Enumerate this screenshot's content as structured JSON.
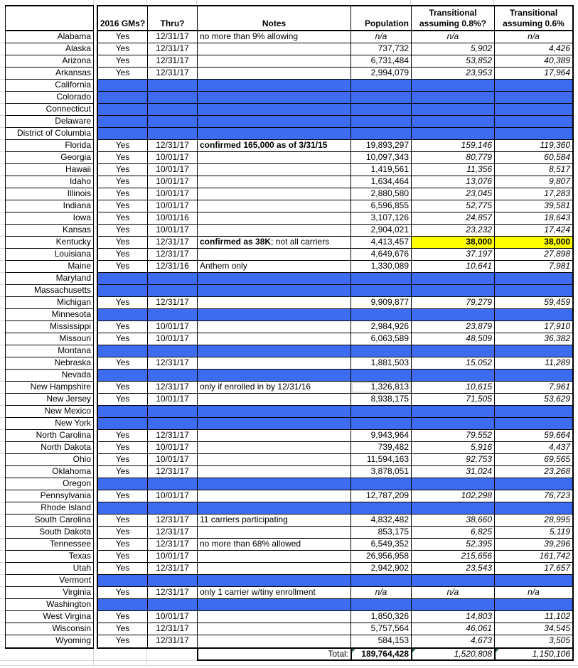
{
  "title": "State transitional plan worksheet",
  "colors": {
    "row_highlight_blue": "#3E6CF0",
    "cell_highlight_yellow": "#FFFF00",
    "error_flag_green": "#217346",
    "grid_stub_gray": "#D6D6D6"
  },
  "header": {
    "col_state": "",
    "col_gms": "2016 GMs?",
    "col_thru": "Thru?",
    "col_notes": "Notes",
    "col_population": "Population",
    "col_t8": [
      "Transitional",
      "assuming 0.8%?"
    ],
    "col_t6": [
      "Transitional",
      "assuming 0.6%"
    ]
  },
  "rows": [
    {
      "state": "Alabama",
      "gms": "Yes",
      "thru": "12/31/17",
      "notes": "no more than 9% allowing",
      "population": "n/a",
      "t8": "n/a",
      "t6": "n/a"
    },
    {
      "state": "Alaska",
      "gms": "Yes",
      "thru": "12/31/17",
      "notes": "",
      "population": "737,732",
      "t8": "5,902",
      "t6": "4,426"
    },
    {
      "state": "Arizona",
      "gms": "Yes",
      "thru": "12/31/17",
      "notes": "",
      "population": "6,731,484",
      "t8": "53,852",
      "t6": "40,389"
    },
    {
      "state": "Arkansas",
      "gms": "Yes",
      "thru": "12/31/17",
      "notes": "",
      "population": "2,994,079",
      "t8": "23,953",
      "t6": "17,964"
    },
    {
      "state": "California",
      "blank": true
    },
    {
      "state": "Colorado",
      "blank": true
    },
    {
      "state": "Connecticut",
      "blank": true
    },
    {
      "state": "Delaware",
      "blank": true
    },
    {
      "state": "District of Columbia",
      "blank": true
    },
    {
      "state": "Florida",
      "gms": "Yes",
      "thru": "12/31/17",
      "notes_bold": "confirmed 165,000 as of 3/31/15",
      "notes": "",
      "population": "19,893,297",
      "t8": "159,146",
      "t6": "119,360"
    },
    {
      "state": "Georgia",
      "gms": "Yes",
      "thru": "10/01/17",
      "notes": "",
      "population": "10,097,343",
      "t8": "80,779",
      "t6": "60,584"
    },
    {
      "state": "Hawaii",
      "gms": "Yes",
      "thru": "10/01/17",
      "notes": "",
      "population": "1,419,561",
      "t8": "11,356",
      "t6": "8,517"
    },
    {
      "state": "Idaho",
      "gms": "Yes",
      "thru": "10/01/17",
      "notes": "",
      "population": "1,634,464",
      "t8": "13,076",
      "t6": "9,807"
    },
    {
      "state": "Illinois",
      "gms": "Yes",
      "thru": "10/01/17",
      "notes": "",
      "population": "2,880,580",
      "t8": "23,045",
      "t6": "17,283"
    },
    {
      "state": "Indiana",
      "gms": "Yes",
      "thru": "10/01/17",
      "notes": "",
      "population": "6,596,855",
      "t8": "52,775",
      "t6": "39,581"
    },
    {
      "state": "Iowa",
      "gms": "Yes",
      "thru": "10/01/16",
      "notes": "",
      "population": "3,107,126",
      "t8": "24,857",
      "t6": "18,643"
    },
    {
      "state": "Kansas",
      "gms": "Yes",
      "thru": "10/01/17",
      "notes": "",
      "population": "2,904,021",
      "t8": "23,232",
      "t6": "17,424"
    },
    {
      "state": "Kentucky",
      "gms": "Yes",
      "thru": "12/31/17",
      "notes_bold": "confirmed as 38K",
      "notes": "; not all carriers",
      "population": "4,413,457",
      "t8": "38,000",
      "t6": "38,000",
      "highlight": true
    },
    {
      "state": "Louisiana",
      "gms": "Yes",
      "thru": "12/31/17",
      "notes": "",
      "population": "4,649,676",
      "t8": "37,197",
      "t6": "27,898"
    },
    {
      "state": "Maine",
      "gms": "Yes",
      "thru": "12/31/16",
      "notes": "Anthem only",
      "population": "1,330,089",
      "t8": "10,641",
      "t6": "7,981"
    },
    {
      "state": "Maryland",
      "blank": true
    },
    {
      "state": "Massachusetts",
      "blank": true
    },
    {
      "state": "Michigan",
      "gms": "Yes",
      "thru": "12/31/17",
      "notes": "",
      "population": "9,909,877",
      "t8": "79,279",
      "t6": "59,459"
    },
    {
      "state": "Minnesota",
      "blank": true
    },
    {
      "state": "Mississippi",
      "gms": "Yes",
      "thru": "10/01/17",
      "notes": "",
      "population": "2,984,926",
      "t8": "23,879",
      "t6": "17,910"
    },
    {
      "state": "Missouri",
      "gms": "Yes",
      "thru": "10/01/17",
      "notes": "",
      "population": "6,063,589",
      "t8": "48,509",
      "t6": "36,382"
    },
    {
      "state": "Montana",
      "blank": true
    },
    {
      "state": "Nebraska",
      "gms": "Yes",
      "thru": "12/31/17",
      "notes": "",
      "population": "1,881,503",
      "t8": "15,052",
      "t6": "11,289"
    },
    {
      "state": "Nevada",
      "blank": true
    },
    {
      "state": "New Hampshire",
      "gms": "Yes",
      "thru": "12/31/17",
      "notes": "only if enrolled in by 12/31/16",
      "population": "1,326,813",
      "t8": "10,615",
      "t6": "7,961",
      "halo": true
    },
    {
      "state": "New Jersey",
      "gms": "Yes",
      "thru": "10/01/17",
      "notes": "",
      "population": "8,938,175",
      "t8": "71,505",
      "t6": "53,629"
    },
    {
      "state": "New Mexico",
      "blank": true
    },
    {
      "state": "New York",
      "blank": true
    },
    {
      "state": "North Carolina",
      "gms": "Yes",
      "thru": "12/31/17",
      "notes": "",
      "population": "9,943,964",
      "t8": "79,552",
      "t6": "59,664"
    },
    {
      "state": "North Dakota",
      "gms": "Yes",
      "thru": "10/01/17",
      "notes": "",
      "population": "739,482",
      "t8": "5,916",
      "t6": "4,437"
    },
    {
      "state": "Ohio",
      "gms": "Yes",
      "thru": "10/01/17",
      "notes": "",
      "population": "11,594,163",
      "t8": "92,753",
      "t6": "69,565"
    },
    {
      "state": "Oklahoma",
      "gms": "Yes",
      "thru": "12/31/17",
      "notes": "",
      "population": "3,878,051",
      "t8": "31,024",
      "t6": "23,268"
    },
    {
      "state": "Oregon",
      "blank": true
    },
    {
      "state": "Pennsylvania",
      "gms": "Yes",
      "thru": "10/01/17",
      "notes": "",
      "population": "12,787,209",
      "t8": "102,298",
      "t6": "76,723"
    },
    {
      "state": "Rhode Island",
      "blank": true
    },
    {
      "state": "South Carolina",
      "gms": "Yes",
      "thru": "12/31/17",
      "notes": "11 carriers participating",
      "population": "4,832,482",
      "t8": "38,660",
      "t6": "28,995"
    },
    {
      "state": "South Dakota",
      "gms": "Yes",
      "thru": "12/31/17",
      "notes": "",
      "population": "853,175",
      "t8": "6,825",
      "t6": "5,119"
    },
    {
      "state": "Tennessee",
      "gms": "Yes",
      "thru": "12/31/17",
      "notes": "no more than 68% allowed",
      "population": "6,549,352",
      "t8": "52,395",
      "t6": "39,296"
    },
    {
      "state": "Texas",
      "gms": "Yes",
      "thru": "10/01/17",
      "notes": "",
      "population": "26,956,958",
      "t8": "215,656",
      "t6": "161,742"
    },
    {
      "state": "Utah",
      "gms": "Yes",
      "thru": "12/31/17",
      "notes": "",
      "population": "2,942,902",
      "t8": "23,543",
      "t6": "17,657"
    },
    {
      "state": "Vermont",
      "blank": true
    },
    {
      "state": "Virginia",
      "gms": "Yes",
      "thru": "12/31/17",
      "notes": "only 1 carrier w/tiny enrollment",
      "population": "n/a",
      "t8": "n/a",
      "t6": "n/a"
    },
    {
      "state": "Washington",
      "blank": true
    },
    {
      "state": "West Virgina",
      "gms": "Yes",
      "thru": "10/01/17",
      "notes": "",
      "population": "1,850,326",
      "t8": "14,803",
      "t6": "11,102"
    },
    {
      "state": "Wisconsin",
      "gms": "Yes",
      "thru": "12/31/17",
      "notes": "",
      "population": "5,757,564",
      "t8": "46,061",
      "t6": "34,545"
    },
    {
      "state": "Wyoming",
      "gms": "Yes",
      "thru": "12/31/17",
      "notes": "",
      "population": "584,153",
      "t8": "4,673",
      "t6": "3,505"
    }
  ],
  "total": {
    "label": "Total:",
    "population": "189,764,428",
    "t8": "1,520,808",
    "t6": "1,150,106"
  }
}
